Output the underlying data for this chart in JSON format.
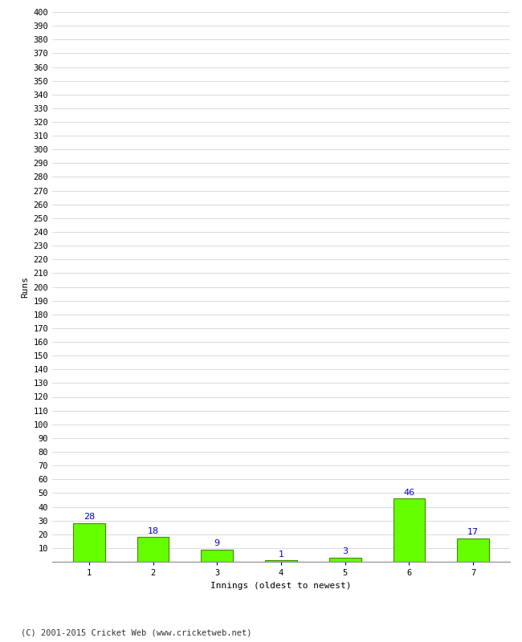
{
  "categories": [
    "1",
    "2",
    "3",
    "4",
    "5",
    "6",
    "7"
  ],
  "values": [
    28,
    18,
    9,
    1,
    3,
    46,
    17
  ],
  "bar_color": "#66ff00",
  "bar_edge_color": "#448800",
  "label_color": "#0000cc",
  "ylabel": "Runs",
  "xlabel": "Innings (oldest to newest)",
  "ylim": [
    0,
    400
  ],
  "ytick_major_step": 10,
  "background_color": "#ffffff",
  "grid_color": "#cccccc",
  "footer": "(C) 2001-2015 Cricket Web (www.cricketweb.net)",
  "tick_fontsize": 7.5,
  "label_fontsize": 8,
  "bar_label_fontsize": 8
}
